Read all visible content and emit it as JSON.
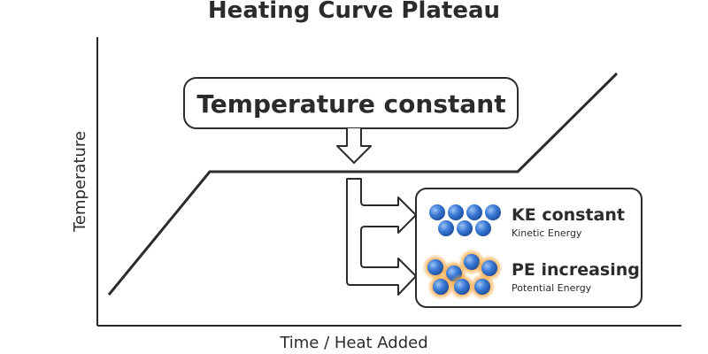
{
  "title": "Heating Curve Plateau",
  "axes": {
    "x_label": "Time / Heat Added",
    "y_label": "Temperature"
  },
  "callout": {
    "text": "Temperature constant"
  },
  "info": {
    "ke": {
      "title": "KE constant",
      "subtitle": "Kinetic Energy"
    },
    "pe": {
      "title": "PE increasing",
      "subtitle": "Potential Energy"
    }
  },
  "colors": {
    "line": "#2b2b2b",
    "particle": "#2f6fd0",
    "glow": "#f5a640",
    "background": "#ffffff"
  }
}
